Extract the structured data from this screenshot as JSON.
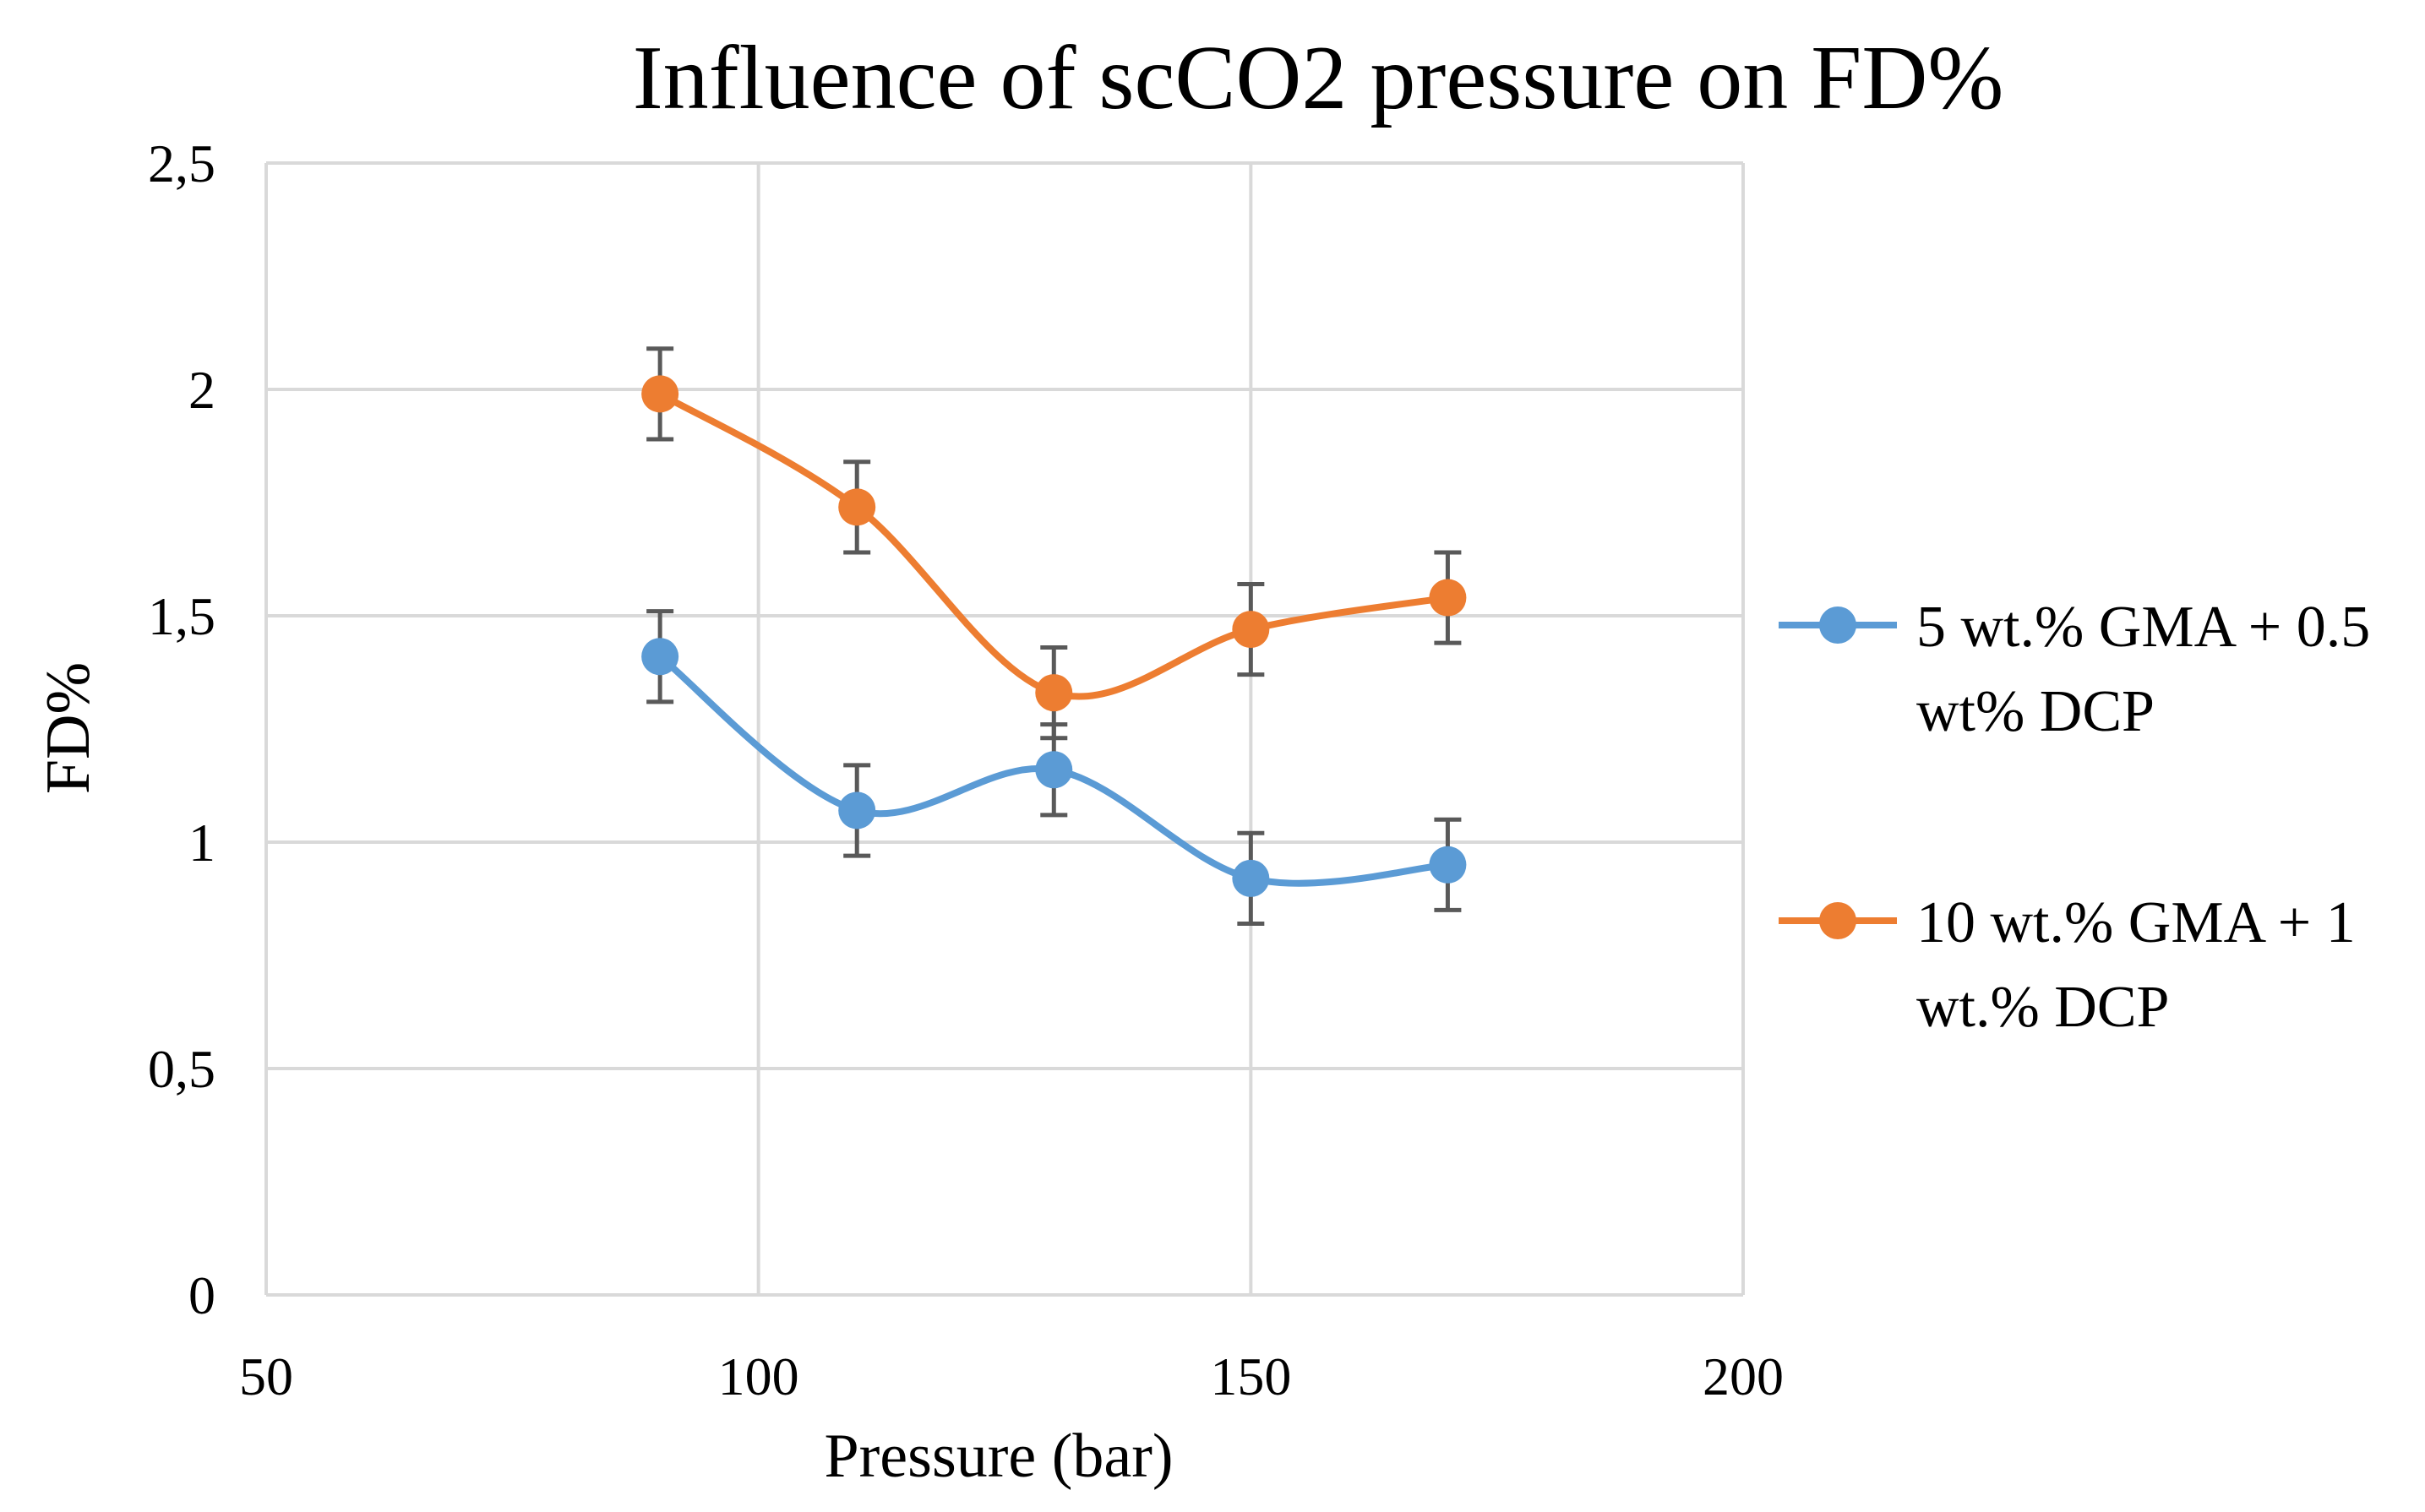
{
  "chart_data": {
    "type": "scatter",
    "title": "Influence of scCO2 pressure  on FD%",
    "xlabel": "Pressure (bar)",
    "ylabel": "FD%",
    "xlim": [
      50,
      200
    ],
    "ylim": [
      0,
      2.5
    ],
    "x_ticks": [
      50,
      100,
      150,
      200
    ],
    "y_ticks": [
      0,
      0.5,
      1,
      1.5,
      2,
      2.5
    ],
    "x_tick_labels": [
      "50",
      "100",
      "150",
      "200"
    ],
    "y_tick_labels": [
      "0",
      "0,5",
      "1",
      "1,5",
      "2",
      "2,5"
    ],
    "grid": true,
    "smooth_lines": true,
    "legend_position": "right",
    "series": [
      {
        "name_lines": [
          "5 wt.% GMA + 0.5",
          "wt% DCP"
        ],
        "color": "#5b9bd5",
        "x": [
          90,
          110,
          130,
          150,
          170
        ],
        "y": [
          1.41,
          1.07,
          1.16,
          0.92,
          0.95
        ],
        "error": [
          0.1,
          0.1,
          0.1,
          0.1,
          0.1
        ]
      },
      {
        "name_lines": [
          "10 wt.% GMA + 1",
          "wt.% DCP"
        ],
        "color": "#ed7d31",
        "x": [
          90,
          110,
          130,
          150,
          170
        ],
        "y": [
          1.99,
          1.74,
          1.33,
          1.47,
          1.54
        ],
        "error": [
          0.1,
          0.1,
          0.1,
          0.1,
          0.1
        ]
      }
    ]
  }
}
